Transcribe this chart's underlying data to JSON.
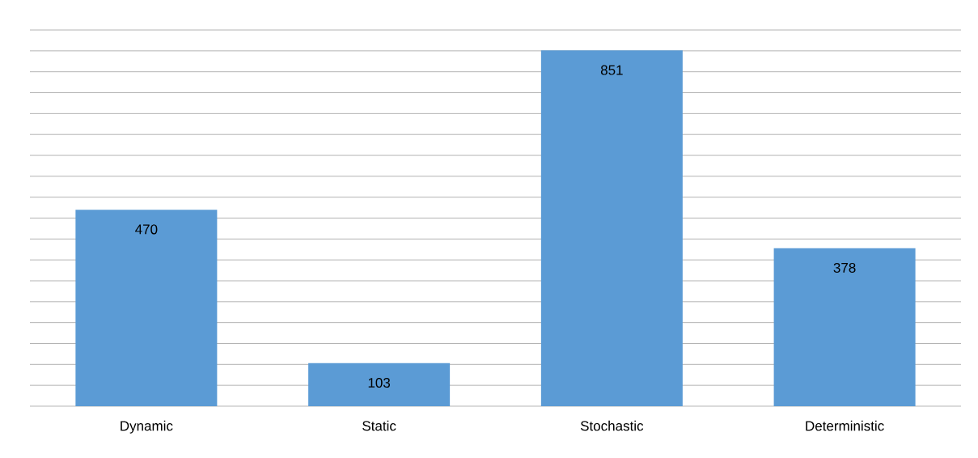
{
  "chart_data": {
    "type": "bar",
    "categories": [
      "Dynamic",
      "Static",
      "Stochastic",
      "Deterministic"
    ],
    "values": [
      470,
      103,
      851,
      378
    ],
    "color": "#5b9bd5",
    "data_labels": true,
    "grid": "y"
  }
}
